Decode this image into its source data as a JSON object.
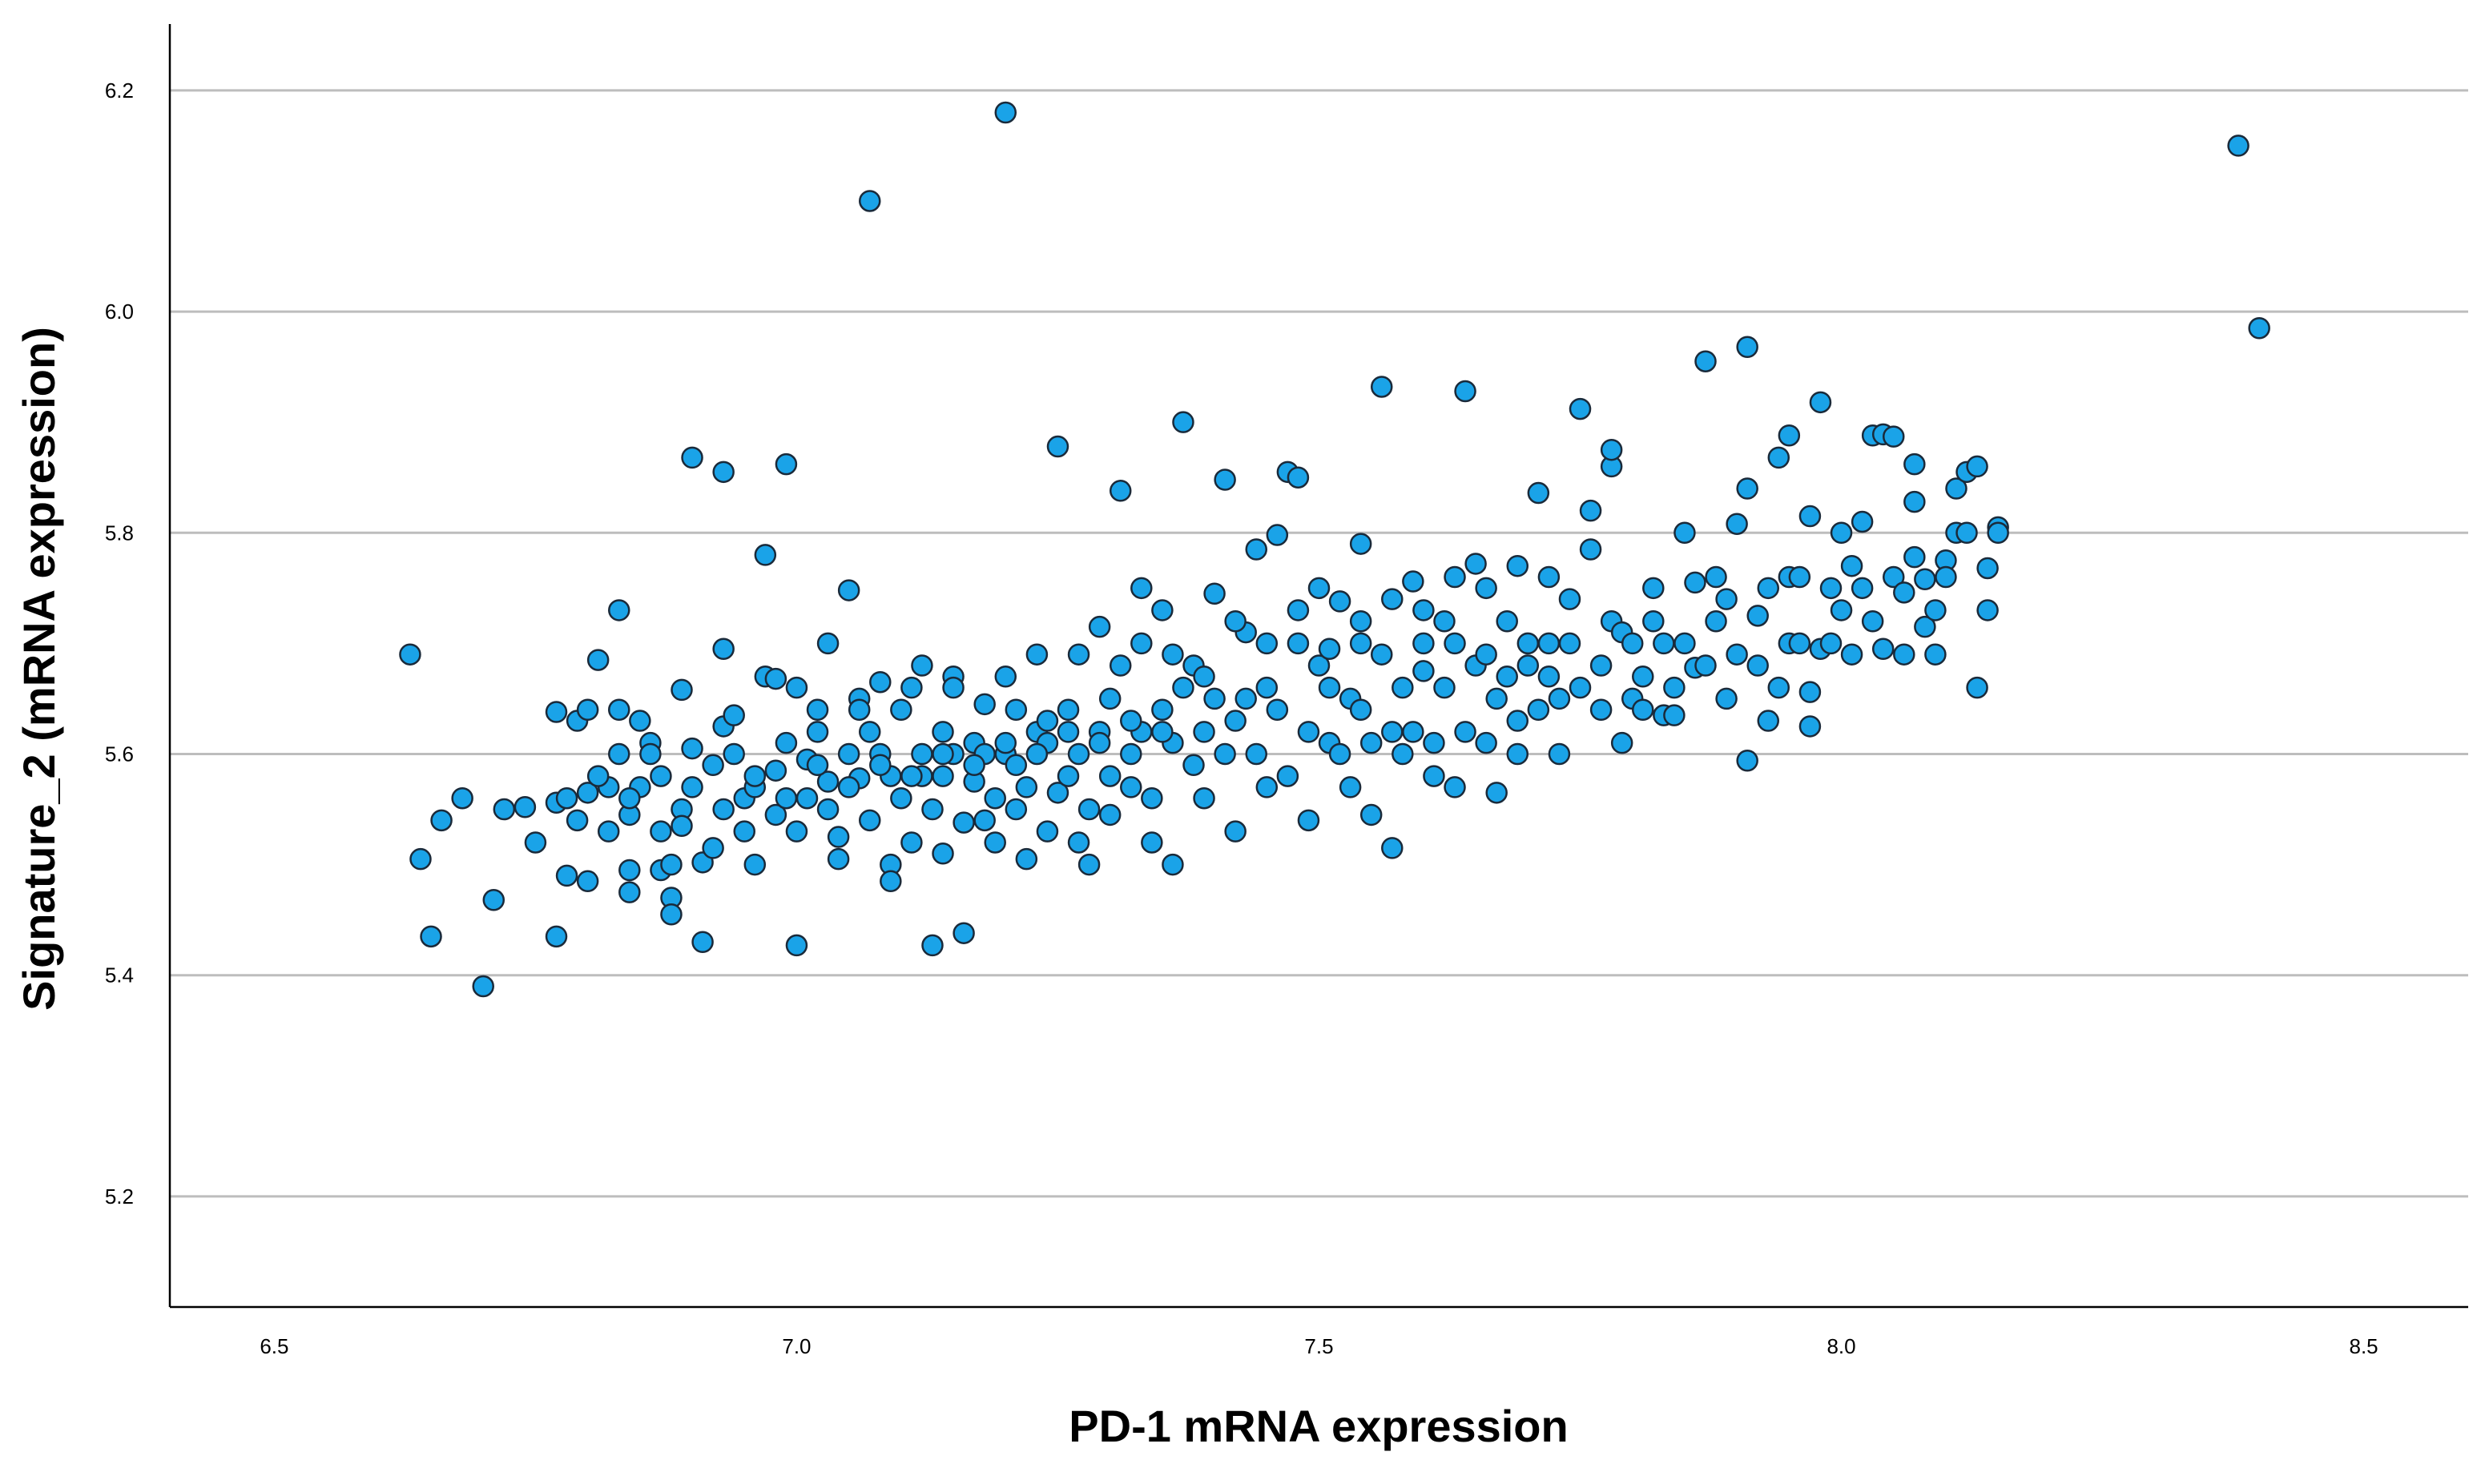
{
  "chart_data": {
    "type": "scatter",
    "title": "",
    "xlabel": "PD-1 mRNA expression",
    "ylabel": "Signature_2 (mRNA expression)",
    "xlim": [
      6.4,
      8.6
    ],
    "ylim": [
      5.1,
      6.26
    ],
    "x_ticks": [
      "6.5",
      "7.0",
      "7.5",
      "8.0",
      "8.5"
    ],
    "y_ticks": [
      "5.2",
      "5.4",
      "5.6",
      "5.8",
      "6.0",
      "6.2"
    ],
    "grid": "horizontal",
    "marker_color": "#1aa3e8",
    "marker_edge": "#1a2a3a",
    "points": [
      [
        6.63,
        5.69
      ],
      [
        6.64,
        5.505
      ],
      [
        6.65,
        5.435
      ],
      [
        6.66,
        5.54
      ],
      [
        6.68,
        5.56
      ],
      [
        6.7,
        5.39
      ],
      [
        6.71,
        5.468
      ],
      [
        6.72,
        5.55
      ],
      [
        6.74,
        5.552
      ],
      [
        6.75,
        5.52
      ],
      [
        6.77,
        5.556
      ],
      [
        6.77,
        5.638
      ],
      [
        6.77,
        5.435
      ],
      [
        6.78,
        5.49
      ],
      [
        6.79,
        5.63
      ],
      [
        6.79,
        5.54
      ],
      [
        6.8,
        5.64
      ],
      [
        6.8,
        5.565
      ],
      [
        6.8,
        5.485
      ],
      [
        6.81,
        5.685
      ],
      [
        6.82,
        5.57
      ],
      [
        6.82,
        5.53
      ],
      [
        6.83,
        5.64
      ],
      [
        6.83,
        5.73
      ],
      [
        6.83,
        5.6
      ],
      [
        6.84,
        5.545
      ],
      [
        6.84,
        5.495
      ],
      [
        6.84,
        5.475
      ],
      [
        6.85,
        5.57
      ],
      [
        6.85,
        5.63
      ],
      [
        6.86,
        5.61
      ],
      [
        6.86,
        5.6
      ],
      [
        6.87,
        5.58
      ],
      [
        6.87,
        5.495
      ],
      [
        6.88,
        5.5
      ],
      [
        6.88,
        5.47
      ],
      [
        6.88,
        5.455
      ],
      [
        6.89,
        5.55
      ],
      [
        6.89,
        5.535
      ],
      [
        6.89,
        5.658
      ],
      [
        6.9,
        5.605
      ],
      [
        6.9,
        5.868
      ],
      [
        6.91,
        5.502
      ],
      [
        6.91,
        5.43
      ],
      [
        6.92,
        5.59
      ],
      [
        6.92,
        5.515
      ],
      [
        6.93,
        5.625
      ],
      [
        6.93,
        5.855
      ],
      [
        6.93,
        5.695
      ],
      [
        6.94,
        5.635
      ],
      [
        6.94,
        5.6
      ],
      [
        6.95,
        5.56
      ],
      [
        6.95,
        5.53
      ],
      [
        6.96,
        5.57
      ],
      [
        6.96,
        5.5
      ],
      [
        6.97,
        5.78
      ],
      [
        6.97,
        5.67
      ],
      [
        6.98,
        5.668
      ],
      [
        6.98,
        5.585
      ],
      [
        6.98,
        5.545
      ],
      [
        6.99,
        5.862
      ],
      [
        6.99,
        5.61
      ],
      [
        7.0,
        5.53
      ],
      [
        7.0,
        5.427
      ],
      [
        7.01,
        5.595
      ],
      [
        7.01,
        5.56
      ],
      [
        7.02,
        5.64
      ],
      [
        7.02,
        5.62
      ],
      [
        7.03,
        5.575
      ],
      [
        7.03,
        5.55
      ],
      [
        7.04,
        5.525
      ],
      [
        7.04,
        5.505
      ],
      [
        7.05,
        5.748
      ],
      [
        7.05,
        5.6
      ],
      [
        7.06,
        5.65
      ],
      [
        7.06,
        5.578
      ],
      [
        7.07,
        5.62
      ],
      [
        7.07,
        5.54
      ],
      [
        7.08,
        5.665
      ],
      [
        7.08,
        5.6
      ],
      [
        7.09,
        5.5
      ],
      [
        7.09,
        5.485
      ],
      [
        7.1,
        5.64
      ],
      [
        7.1,
        5.56
      ],
      [
        7.11,
        5.66
      ],
      [
        7.11,
        5.52
      ],
      [
        7.12,
        5.6
      ],
      [
        7.12,
        5.58
      ],
      [
        7.13,
        5.55
      ],
      [
        7.13,
        5.427
      ],
      [
        7.14,
        5.58
      ],
      [
        7.14,
        5.62
      ],
      [
        7.14,
        5.51
      ],
      [
        7.15,
        5.67
      ],
      [
        7.15,
        5.6
      ],
      [
        7.16,
        5.538
      ],
      [
        7.16,
        5.438
      ],
      [
        7.17,
        5.61
      ],
      [
        7.17,
        5.575
      ],
      [
        7.18,
        5.6
      ],
      [
        7.18,
        5.54
      ],
      [
        7.19,
        5.56
      ],
      [
        7.19,
        5.52
      ],
      [
        7.2,
        5.6
      ],
      [
        7.2,
        5.67
      ],
      [
        7.21,
        5.59
      ],
      [
        7.21,
        5.55
      ],
      [
        7.22,
        5.57
      ],
      [
        7.22,
        5.505
      ],
      [
        7.23,
        5.69
      ],
      [
        7.23,
        5.62
      ],
      [
        7.24,
        5.61
      ],
      [
        7.24,
        5.53
      ],
      [
        7.25,
        5.878
      ],
      [
        7.25,
        5.565
      ],
      [
        7.26,
        5.64
      ],
      [
        7.26,
        5.58
      ],
      [
        7.27,
        5.6
      ],
      [
        7.27,
        5.52
      ],
      [
        7.28,
        5.55
      ],
      [
        7.28,
        5.5
      ],
      [
        7.29,
        5.62
      ],
      [
        7.29,
        5.715
      ],
      [
        7.3,
        5.58
      ],
      [
        7.3,
        5.545
      ],
      [
        7.31,
        5.838
      ],
      [
        7.31,
        5.68
      ],
      [
        7.32,
        5.6
      ],
      [
        7.32,
        5.57
      ],
      [
        7.33,
        5.75
      ],
      [
        7.33,
        5.62
      ],
      [
        7.34,
        5.56
      ],
      [
        7.34,
        5.52
      ],
      [
        7.35,
        5.73
      ],
      [
        7.35,
        5.64
      ],
      [
        7.36,
        5.61
      ],
      [
        7.36,
        5.5
      ],
      [
        7.37,
        5.9
      ],
      [
        7.37,
        5.66
      ],
      [
        7.38,
        5.59
      ],
      [
        7.38,
        5.68
      ],
      [
        7.39,
        5.62
      ],
      [
        7.39,
        5.56
      ],
      [
        7.4,
        5.745
      ],
      [
        7.4,
        5.65
      ],
      [
        7.41,
        5.848
      ],
      [
        7.41,
        5.6
      ],
      [
        7.42,
        5.63
      ],
      [
        7.42,
        5.53
      ],
      [
        7.43,
        5.71
      ],
      [
        7.43,
        5.65
      ],
      [
        7.44,
        5.6
      ],
      [
        7.44,
        5.785
      ],
      [
        7.45,
        5.66
      ],
      [
        7.45,
        5.57
      ],
      [
        7.46,
        5.798
      ],
      [
        7.46,
        5.64
      ],
      [
        7.47,
        5.58
      ],
      [
        7.47,
        5.855
      ],
      [
        7.48,
        5.7
      ],
      [
        7.48,
        5.85
      ],
      [
        7.49,
        5.62
      ],
      [
        7.49,
        5.54
      ],
      [
        7.5,
        5.68
      ],
      [
        7.5,
        5.75
      ],
      [
        7.51,
        5.61
      ],
      [
        7.51,
        5.66
      ],
      [
        7.52,
        5.738
      ],
      [
        7.52,
        5.6
      ],
      [
        7.53,
        5.57
      ],
      [
        7.53,
        5.65
      ],
      [
        7.54,
        5.72
      ],
      [
        7.54,
        5.64
      ],
      [
        7.55,
        5.61
      ],
      [
        7.55,
        5.545
      ],
      [
        7.56,
        5.69
      ],
      [
        7.56,
        5.932
      ],
      [
        7.57,
        5.62
      ],
      [
        7.57,
        5.515
      ],
      [
        7.58,
        5.66
      ],
      [
        7.58,
        5.6
      ],
      [
        7.59,
        5.756
      ],
      [
        7.59,
        5.62
      ],
      [
        7.6,
        5.675
      ],
      [
        7.6,
        5.7
      ],
      [
        7.61,
        5.58
      ],
      [
        7.61,
        5.61
      ],
      [
        7.62,
        5.72
      ],
      [
        7.62,
        5.66
      ],
      [
        7.63,
        5.7
      ],
      [
        7.63,
        5.57
      ],
      [
        7.64,
        5.928
      ],
      [
        7.64,
        5.62
      ],
      [
        7.65,
        5.772
      ],
      [
        7.65,
        5.68
      ],
      [
        7.66,
        5.61
      ],
      [
        7.66,
        5.69
      ],
      [
        7.67,
        5.565
      ],
      [
        7.67,
        5.65
      ],
      [
        7.68,
        5.72
      ],
      [
        7.68,
        5.67
      ],
      [
        7.69,
        5.63
      ],
      [
        7.69,
        5.6
      ],
      [
        7.7,
        5.7
      ],
      [
        7.7,
        5.68
      ],
      [
        7.71,
        5.64
      ],
      [
        7.71,
        5.836
      ],
      [
        7.72,
        5.7
      ],
      [
        7.72,
        5.67
      ],
      [
        7.73,
        5.65
      ],
      [
        7.73,
        5.6
      ],
      [
        7.74,
        5.74
      ],
      [
        7.74,
        5.7
      ],
      [
        7.75,
        5.912
      ],
      [
        7.75,
        5.66
      ],
      [
        7.76,
        5.82
      ],
      [
        7.76,
        5.785
      ],
      [
        7.77,
        5.68
      ],
      [
        7.77,
        5.64
      ],
      [
        7.78,
        5.72
      ],
      [
        7.78,
        5.86
      ],
      [
        7.79,
        5.71
      ],
      [
        7.79,
        5.61
      ],
      [
        7.8,
        5.7
      ],
      [
        7.8,
        5.65
      ],
      [
        7.81,
        5.67
      ],
      [
        7.81,
        5.64
      ],
      [
        7.82,
        5.75
      ],
      [
        7.82,
        5.72
      ],
      [
        7.83,
        5.7
      ],
      [
        7.83,
        5.635
      ],
      [
        7.84,
        5.66
      ],
      [
        7.84,
        5.635
      ],
      [
        7.85,
        5.8
      ],
      [
        7.85,
        5.7
      ],
      [
        7.86,
        5.755
      ],
      [
        7.86,
        5.678
      ],
      [
        7.87,
        5.68
      ],
      [
        7.87,
        5.955
      ],
      [
        7.88,
        5.72
      ],
      [
        7.88,
        5.76
      ],
      [
        7.89,
        5.74
      ],
      [
        7.89,
        5.65
      ],
      [
        7.9,
        5.69
      ],
      [
        7.9,
        5.808
      ],
      [
        7.91,
        5.84
      ],
      [
        7.91,
        5.594
      ],
      [
        7.92,
        5.68
      ],
      [
        7.92,
        5.725
      ],
      [
        7.93,
        5.75
      ],
      [
        7.93,
        5.63
      ],
      [
        7.94,
        5.868
      ],
      [
        7.94,
        5.66
      ],
      [
        7.95,
        5.76
      ],
      [
        7.95,
        5.7
      ],
      [
        7.96,
        5.76
      ],
      [
        7.96,
        5.7
      ],
      [
        7.97,
        5.625
      ],
      [
        7.97,
        5.656
      ],
      [
        7.98,
        5.695
      ],
      [
        7.98,
        5.918
      ],
      [
        7.99,
        5.7
      ],
      [
        7.99,
        5.75
      ],
      [
        8.0,
        5.73
      ],
      [
        8.0,
        5.8
      ],
      [
        8.01,
        5.69
      ],
      [
        8.01,
        5.77
      ],
      [
        8.02,
        5.75
      ],
      [
        8.02,
        5.81
      ],
      [
        8.03,
        5.72
      ],
      [
        8.03,
        5.888
      ],
      [
        8.04,
        5.695
      ],
      [
        8.04,
        5.889
      ],
      [
        8.05,
        5.887
      ],
      [
        8.05,
        5.76
      ],
      [
        8.06,
        5.69
      ],
      [
        8.06,
        5.746
      ],
      [
        8.07,
        5.828
      ],
      [
        8.07,
        5.778
      ],
      [
        8.08,
        5.758
      ],
      [
        8.08,
        5.715
      ],
      [
        8.09,
        5.73
      ],
      [
        8.09,
        5.69
      ],
      [
        8.1,
        5.775
      ],
      [
        8.1,
        5.76
      ],
      [
        8.11,
        5.84
      ],
      [
        8.11,
        5.8
      ],
      [
        8.12,
        5.855
      ],
      [
        8.12,
        5.8
      ],
      [
        8.13,
        5.66
      ],
      [
        8.13,
        5.86
      ],
      [
        8.14,
        5.73
      ],
      [
        8.14,
        5.768
      ],
      [
        8.15,
        5.805
      ],
      [
        8.15,
        5.8
      ],
      [
        7.07,
        6.1
      ],
      [
        7.2,
        6.18
      ],
      [
        8.38,
        6.15
      ],
      [
        8.4,
        5.985
      ],
      [
        7.91,
        5.968
      ],
      [
        7.95,
        5.888
      ],
      [
        7.97,
        5.815
      ],
      [
        8.07,
        5.862
      ],
      [
        7.54,
        5.79
      ],
      [
        7.78,
        5.875
      ],
      [
        7.0,
        5.66
      ],
      [
        7.03,
        5.7
      ],
      [
        7.06,
        5.64
      ],
      [
        7.09,
        5.58
      ],
      [
        7.12,
        5.68
      ],
      [
        7.15,
        5.66
      ],
      [
        7.18,
        5.645
      ],
      [
        7.21,
        5.64
      ],
      [
        7.24,
        5.63
      ],
      [
        7.27,
        5.69
      ],
      [
        7.3,
        5.65
      ],
      [
        7.33,
        5.7
      ],
      [
        7.36,
        5.69
      ],
      [
        7.39,
        5.67
      ],
      [
        7.42,
        5.72
      ],
      [
        7.45,
        5.7
      ],
      [
        7.48,
        5.73
      ],
      [
        7.51,
        5.695
      ],
      [
        7.54,
        5.7
      ],
      [
        7.57,
        5.74
      ],
      [
        7.6,
        5.73
      ],
      [
        7.63,
        5.76
      ],
      [
        7.66,
        5.75
      ],
      [
        7.69,
        5.77
      ],
      [
        7.72,
        5.76
      ],
      [
        6.78,
        5.56
      ],
      [
        6.81,
        5.58
      ],
      [
        6.84,
        5.56
      ],
      [
        6.87,
        5.53
      ],
      [
        6.9,
        5.57
      ],
      [
        6.93,
        5.55
      ],
      [
        6.96,
        5.58
      ],
      [
        6.99,
        5.56
      ],
      [
        7.02,
        5.59
      ],
      [
        7.05,
        5.57
      ],
      [
        7.08,
        5.59
      ],
      [
        7.11,
        5.58
      ],
      [
        7.14,
        5.6
      ],
      [
        7.17,
        5.59
      ],
      [
        7.2,
        5.61
      ],
      [
        7.23,
        5.6
      ],
      [
        7.26,
        5.62
      ],
      [
        7.29,
        5.61
      ],
      [
        7.32,
        5.63
      ],
      [
        7.35,
        5.62
      ]
    ]
  }
}
